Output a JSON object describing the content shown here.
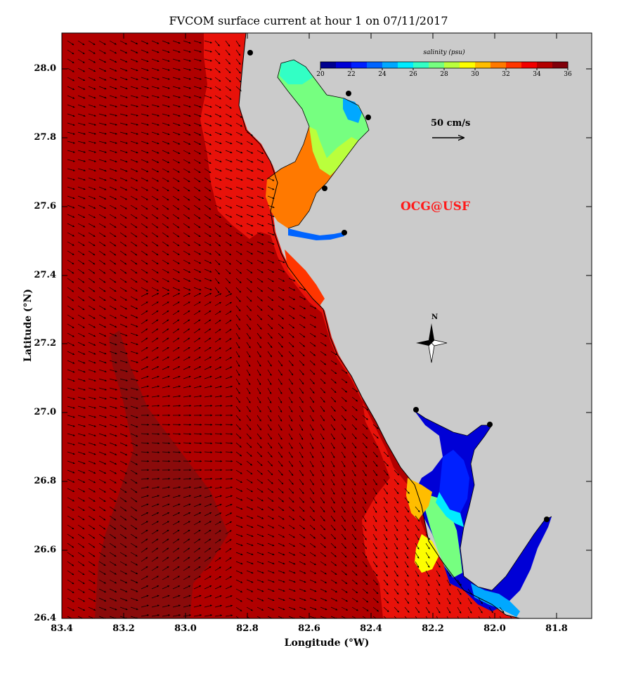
{
  "title": "FVCOM surface current at hour 1 on 07/11/2017",
  "xlabel": "Longitude (°W)",
  "ylabel": "Latitude (°N)",
  "x_ticks": [
    "83.4",
    "83.2",
    "83.0",
    "82.8",
    "82.6",
    "82.4",
    "82.2",
    "82.0",
    "81.8"
  ],
  "y_ticks": [
    "28.0",
    "27.8",
    "27.6",
    "27.4",
    "27.2",
    "27.0",
    "26.8",
    "26.6",
    "26.4"
  ],
  "colorbar": {
    "title": "salinity (psu)",
    "ticks": [
      "20",
      "22",
      "24",
      "26",
      "28",
      "30",
      "32",
      "34",
      "36"
    ],
    "colors": [
      "#00008f",
      "#0000d6",
      "#0020ff",
      "#0064ff",
      "#00a8ff",
      "#00ecff",
      "#32ffc5",
      "#76ff80",
      "#baff3c",
      "#fdfe00",
      "#ffbd00",
      "#ff7900",
      "#ff3500",
      "#f20000",
      "#b30000",
      "#80000a"
    ]
  },
  "scale_arrow_label": "50 cm/s",
  "north_label": "N",
  "brand": "OCG@USF",
  "colors": {
    "land": "#cbcbcb",
    "open_gulf": "#b00000",
    "nearshore": "#e8120a",
    "offshore_core": "#8a0b0b",
    "brand_red": "#ff1a1a"
  },
  "chart_data": {
    "type": "map",
    "variable": "salinity (psu)",
    "vector_field": "surface current",
    "xlim": [
      83.4,
      81.75
    ],
    "ylim": [
      26.4,
      28.1
    ],
    "color_range": [
      20,
      36
    ],
    "scale_vector_cm_s": 50
  }
}
